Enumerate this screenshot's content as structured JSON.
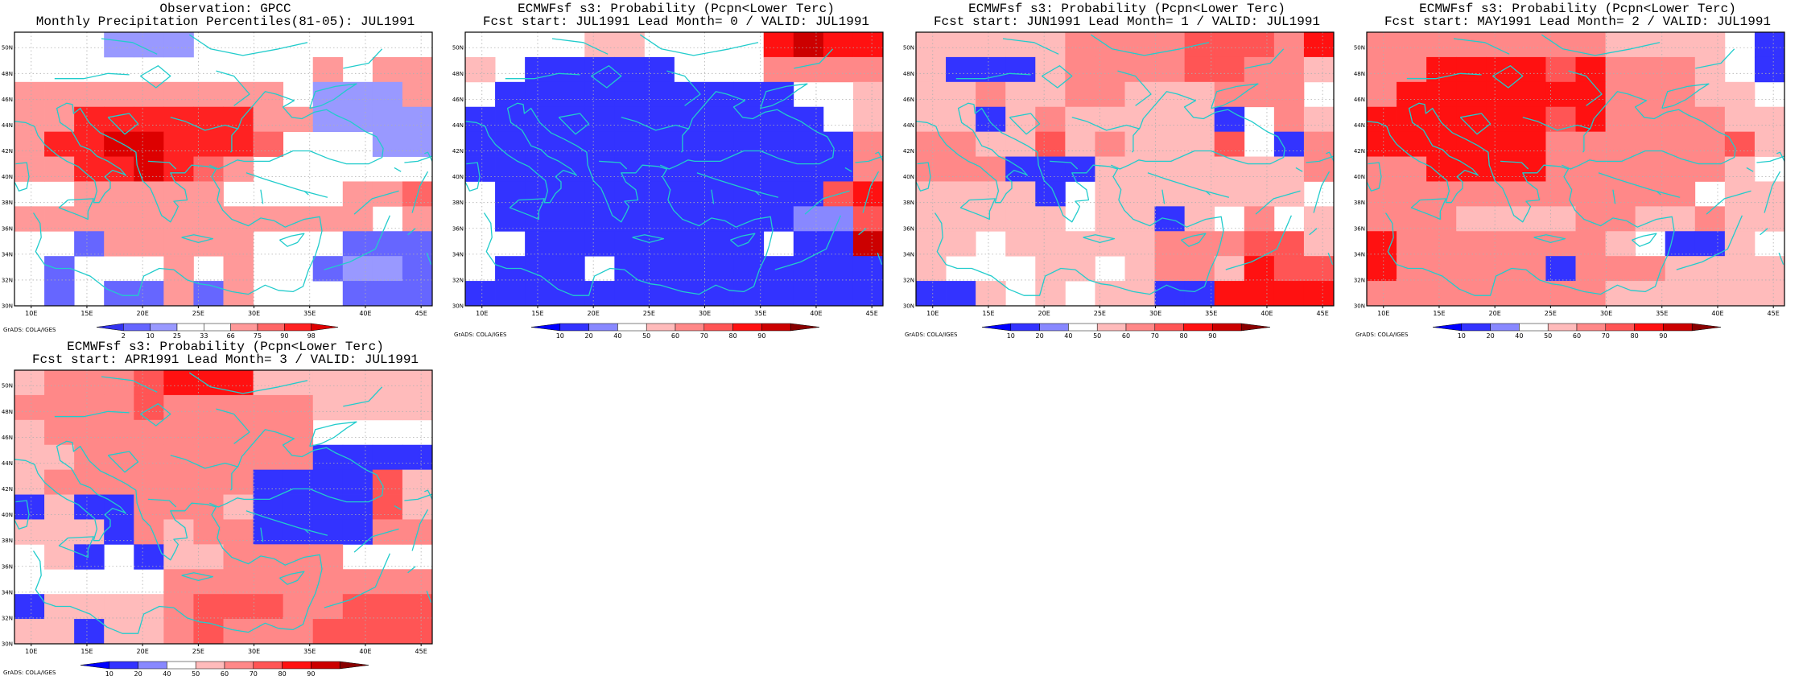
{
  "panels": [
    {
      "title_line1": "Observation: GPCC",
      "title_line2": "Monthly Precipitation Percentiles(81-05): JUL1991",
      "legend_labels": [
        "2",
        "10",
        "25",
        "33",
        "66",
        "75",
        "90",
        "98"
      ],
      "legend_colors": [
        "#3333ee",
        "#6666ff",
        "#9999ff",
        "#ffffff",
        "#ffffff",
        "#ff9999",
        "#ff6666",
        "#ff2222",
        "#dd0000"
      ],
      "grid": [
        "33322233333333",
        "33333333335355",
        "55555555532225",
        "55777777552222",
        "57788777633322",
        "55778765333333",
        "33555554333556",
        "55555555555535",
        "33155555333111",
        "31333535331221",
        "31311515333111"
      ]
    },
    {
      "title_line1": "ECMWFsf s3: Probability (Pcpn<Lower Terc)",
      "title_line2": "Fcst start: JUL1991  Lead Month= 0 / VALID: JUL1991",
      "legend_labels": [
        "10",
        "20",
        "40",
        "50",
        "60",
        "70",
        "80",
        "90"
      ],
      "legend_colors": [
        "#0000ff",
        "#3333ff",
        "#8888ff",
        "#ffffff",
        "#ffbbbb",
        "#ff8888",
        "#ff5555",
        "#ff1111",
        "#cc0000",
        "#880000"
      ],
      "grid": [
        "33334433337877",
        "43111113335555",
        "31111111111334",
        "11111111111134",
        "11111111111115",
        "11111111111115",
        "31111111111167",
        "31111111111226",
        "33111111113118",
        "31113111111111",
        "11111111111111"
      ]
    },
    {
      "title_line1": "ECMWFsf s3: Probability (Pcpn<Lower Terc)",
      "title_line2": "Fcst start: JUN1991  Lead Month= 1 / VALID: JUL1991",
      "legend_labels": [
        "10",
        "20",
        "40",
        "50",
        "60",
        "70",
        "80",
        "90"
      ],
      "legend_colors": [
        "#0000ff",
        "#3333ff",
        "#8888ff",
        "#ffffff",
        "#ffbbbb",
        "#ff8888",
        "#ff5555",
        "#ff1111",
        "#cc0000",
        "#880000"
      ],
      "grid": [
        "44444555566657",
        "41114555566554",
        "44544554445553",
        "44145444441354",
        "55446454446315",
        "55511144444445",
        "44441344444443",
        "44444344143534",
        "44344444555664",
        "43334434554766",
        "11434344117777"
      ]
    },
    {
      "title_line1": "ECMWFsf s3: Probability (Pcpn<Lower Terc)",
      "title_line2": "Fcst start: MAY1991  Lead Month= 2 / VALID: JUL1991",
      "legend_labels": [
        "10",
        "20",
        "40",
        "50",
        "60",
        "70",
        "80",
        "90"
      ],
      "legend_colors": [
        "#0000ff",
        "#3333ff",
        "#8888ff",
        "#ffffff",
        "#ffbbbb",
        "#ff8888",
        "#ff5555",
        "#ff1111",
        "#cc0000",
        "#880000"
      ],
      "grid": [
        "55555555444431",
        "55777767555431",
        "57777777555443",
        "77777767555544",
        "77777755555564",
        "55777755555543",
        "55555555555344",
        "55544445544544",
        "75555555431143",
        "75555515554444",
        "55555555444444"
      ]
    },
    {
      "title_line1": "ECMWFsf s3: Probability (Pcpn<Lower Terc)",
      "title_line2": "Fcst start: APR1991  Lead Month= 3 / VALID: JUL1991",
      "legend_labels": [
        "10",
        "20",
        "40",
        "50",
        "60",
        "70",
        "80",
        "90"
      ],
      "legend_colors": [
        "#0000ff",
        "#3333ff",
        "#8888ff",
        "#ffffff",
        "#ffbbbb",
        "#ff8888",
        "#ff5555",
        "#ff1111",
        "#cc0000",
        "#880000"
      ],
      "grid": [
        "45556777444444",
        "55556555554444",
        "45555555553333",
        "44555555551111",
        "45555555111164",
        "14115554111164",
        "44415455111155",
        "34131445555333",
        "33333555555555",
        "14444566655666",
        "44144565556666"
      ]
    }
  ],
  "map": {
    "lon_ticks": [
      "10E",
      "15E",
      "20E",
      "25E",
      "30E",
      "35E",
      "40E",
      "45E"
    ],
    "lat_ticks": [
      "30N",
      "32N",
      "34N",
      "36N",
      "38N",
      "40N",
      "42N",
      "44N",
      "46N",
      "48N",
      "50N"
    ],
    "coast_color": "#22cccc",
    "grid_color": "#b0b0b0"
  },
  "credit": "GrADS: COLA/IGES"
}
